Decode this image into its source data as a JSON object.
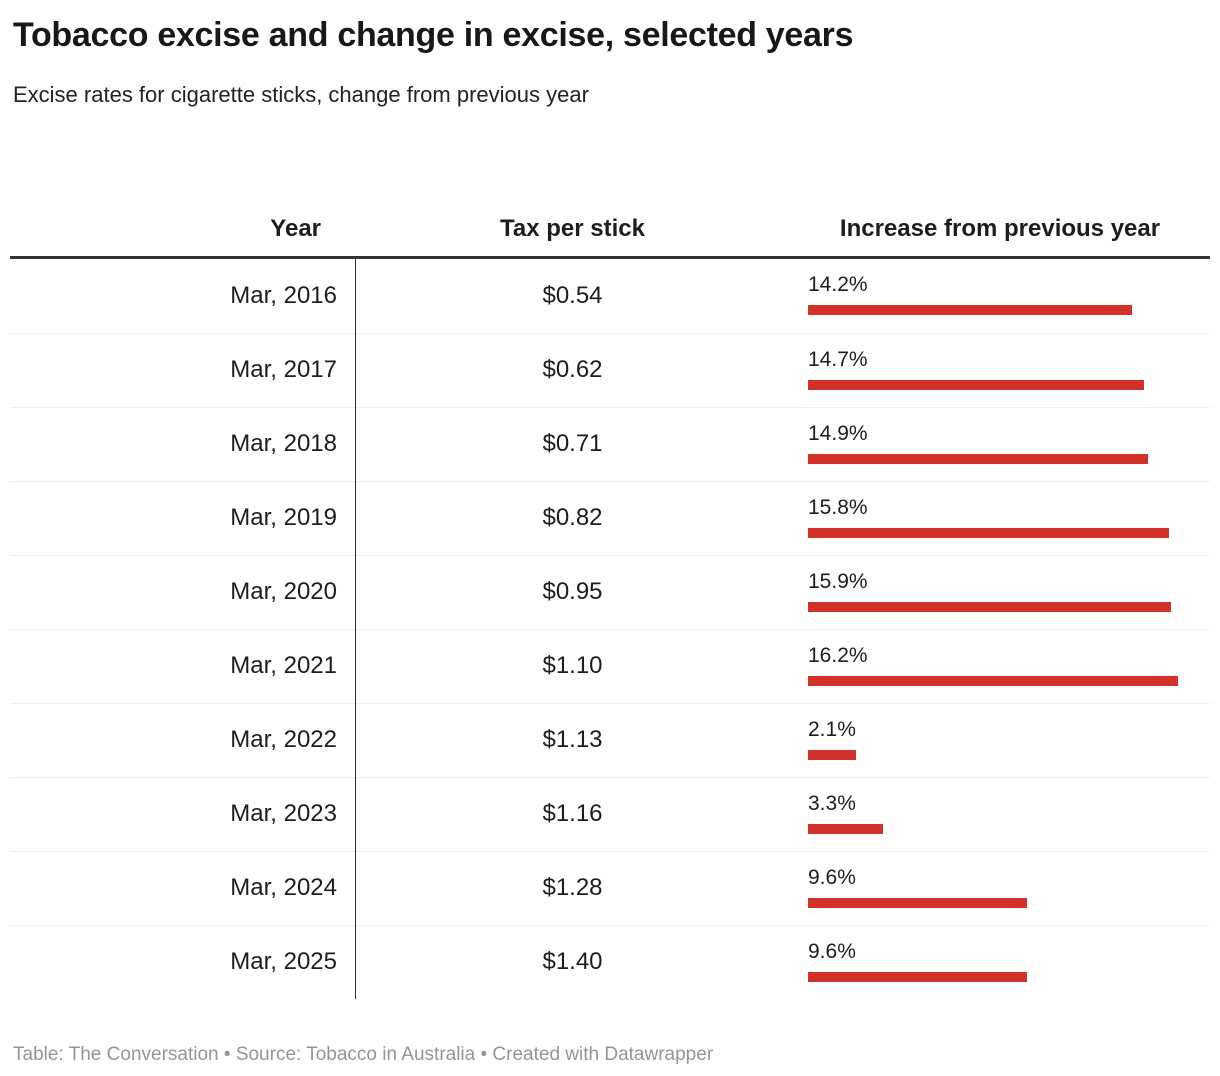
{
  "header": {
    "title": "Tobacco excise and change in excise, selected years",
    "subtitle": "Excise rates for cigarette sticks, change from previous year"
  },
  "table": {
    "columns": {
      "year": "Year",
      "tax": "Tax per stick",
      "increase": "Increase from previous year"
    },
    "bar_color": "#d23229",
    "rows": [
      {
        "year": "Mar, 2016",
        "tax": "$0.54",
        "increase_label": "14.2%",
        "increase_value": 14.2
      },
      {
        "year": "Mar, 2017",
        "tax": "$0.62",
        "increase_label": "14.7%",
        "increase_value": 14.7
      },
      {
        "year": "Mar, 2018",
        "tax": "$0.71",
        "increase_label": "14.9%",
        "increase_value": 14.9
      },
      {
        "year": "Mar, 2019",
        "tax": "$0.82",
        "increase_label": "15.8%",
        "increase_value": 15.8
      },
      {
        "year": "Mar, 2020",
        "tax": "$0.95",
        "increase_label": "15.9%",
        "increase_value": 15.9
      },
      {
        "year": "Mar, 2021",
        "tax": "$1.10",
        "increase_label": "16.2%",
        "increase_value": 16.2
      },
      {
        "year": "Mar, 2022",
        "tax": "$1.13",
        "increase_label": "2.1%",
        "increase_value": 2.1
      },
      {
        "year": "Mar, 2023",
        "tax": "$1.16",
        "increase_label": "3.3%",
        "increase_value": 3.3
      },
      {
        "year": "Mar, 2024",
        "tax": "$1.28",
        "increase_label": "9.6%",
        "increase_value": 9.6
      },
      {
        "year": "Mar, 2025",
        "tax": "$1.40",
        "increase_label": "9.6%",
        "increase_value": 9.6
      }
    ]
  },
  "footer": {
    "text": "Table: The Conversation • Source: Tobacco in Australia • Created with Datawrapper"
  },
  "chart_data": {
    "type": "table",
    "title": "Tobacco excise and change in excise, selected years",
    "subtitle": "Excise rates for cigarette sticks, change from previous year",
    "columns": [
      "Year",
      "Tax per stick",
      "Increase from previous year"
    ],
    "rows": [
      [
        "Mar, 2016",
        "$0.54",
        "14.2%"
      ],
      [
        "Mar, 2017",
        "$0.62",
        "14.7%"
      ],
      [
        "Mar, 2018",
        "$0.71",
        "14.9%"
      ],
      [
        "Mar, 2019",
        "$0.82",
        "15.8%"
      ],
      [
        "Mar, 2020",
        "$0.95",
        "15.9%"
      ],
      [
        "Mar, 2021",
        "$1.10",
        "16.2%"
      ],
      [
        "Mar, 2022",
        "$1.13",
        "2.1%"
      ],
      [
        "Mar, 2023",
        "$1.16",
        "3.3%"
      ],
      [
        "Mar, 2024",
        "$1.28",
        "9.6%"
      ],
      [
        "Mar, 2025",
        "$1.40",
        "9.6%"
      ]
    ],
    "bar_column": {
      "name": "Increase from previous year",
      "unit": "%",
      "categories": [
        "Mar, 2016",
        "Mar, 2017",
        "Mar, 2018",
        "Mar, 2019",
        "Mar, 2020",
        "Mar, 2021",
        "Mar, 2022",
        "Mar, 2023",
        "Mar, 2024",
        "Mar, 2025"
      ],
      "values": [
        14.2,
        14.7,
        14.9,
        15.8,
        15.9,
        16.2,
        2.1,
        3.3,
        9.6,
        9.6
      ],
      "axis_min": 0,
      "axis_max": 16.2,
      "color": "#d23229",
      "orientation": "horizontal"
    },
    "source": "Tobacco in Australia",
    "credit": "Table: The Conversation",
    "tool": "Created with Datawrapper"
  }
}
